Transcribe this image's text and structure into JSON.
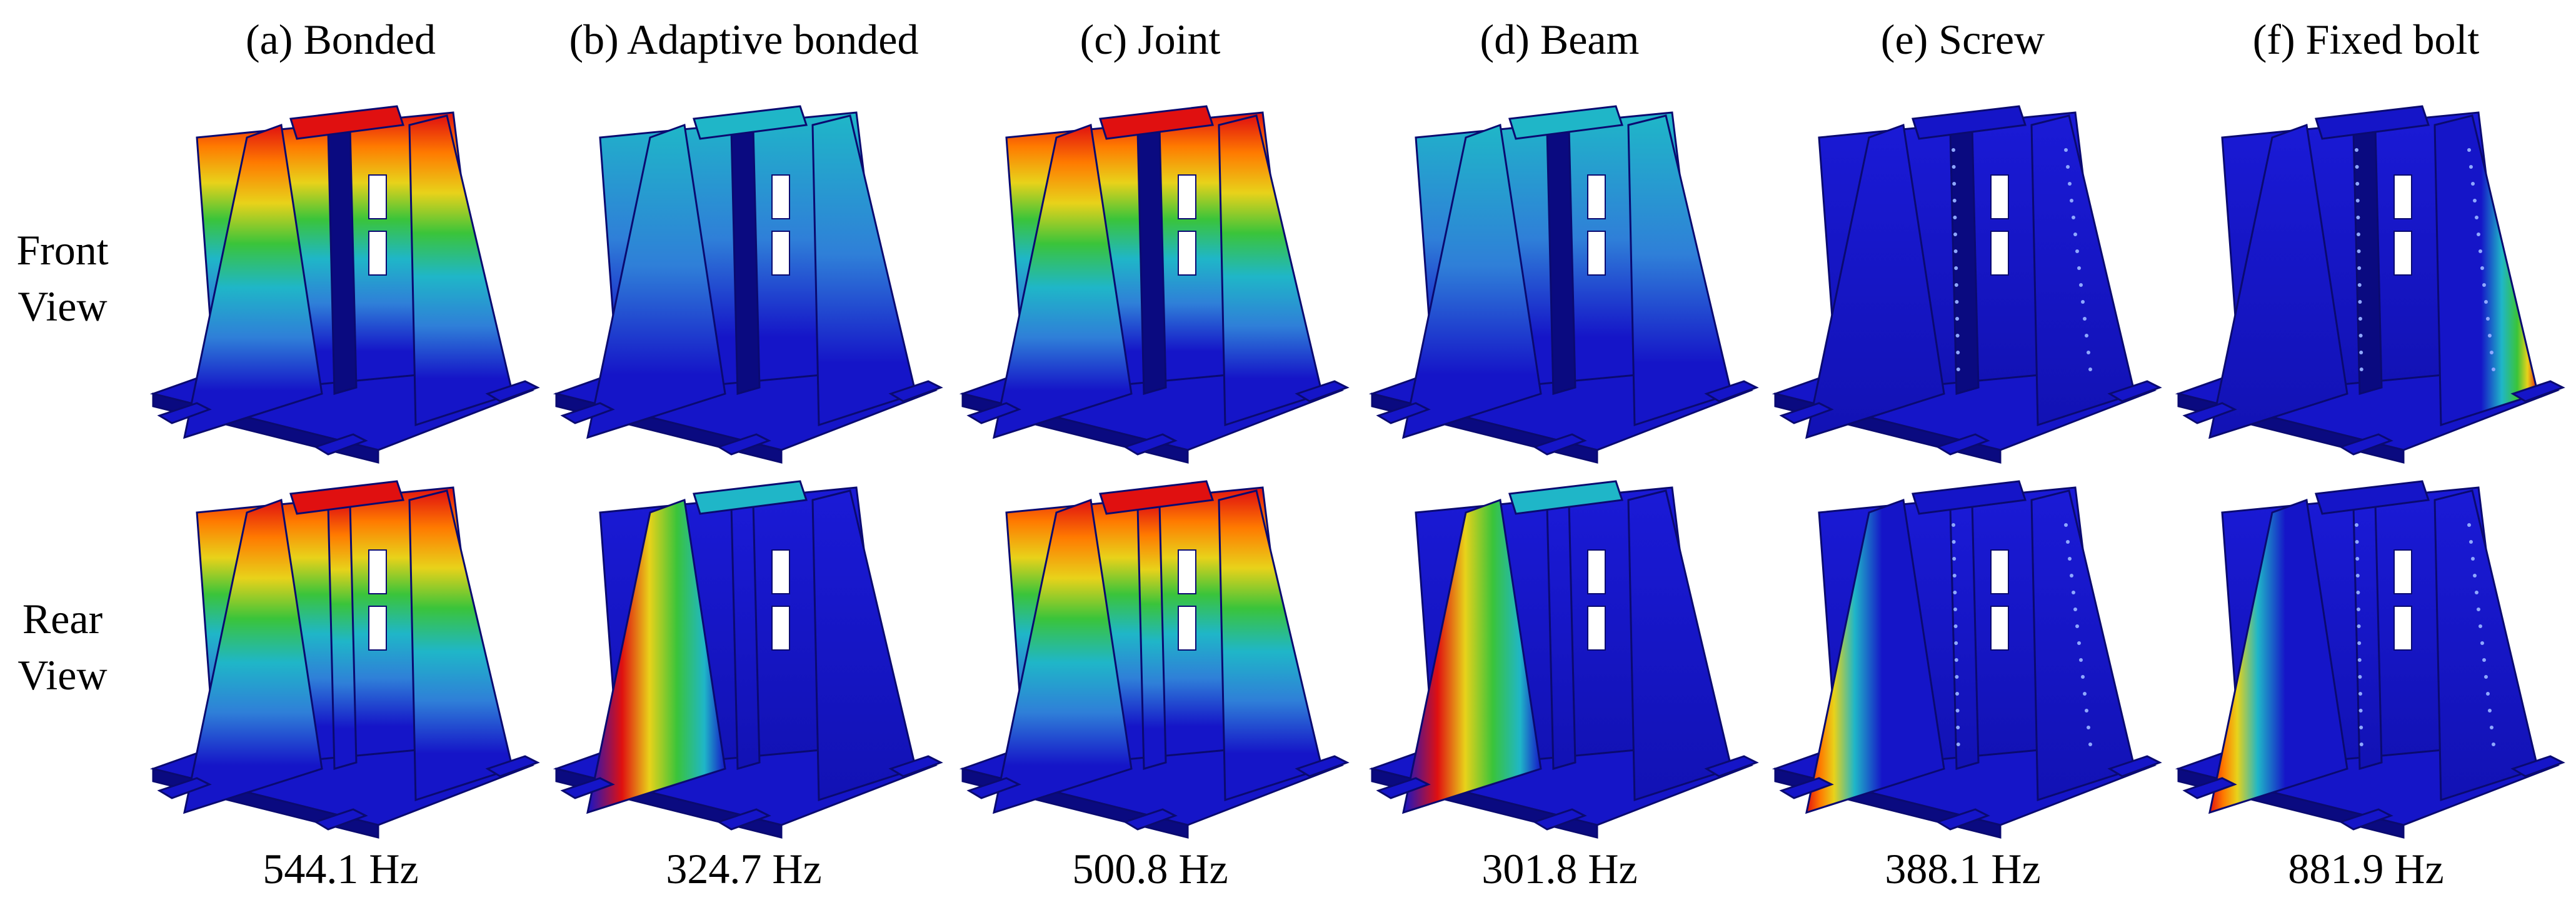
{
  "rows": [
    {
      "label_line1": "Front",
      "label_line2": "View"
    },
    {
      "label_line1": "Rear",
      "label_line2": "View"
    }
  ],
  "columns": [
    {
      "title": "(a) Bonded",
      "frequency": "544.1 Hz",
      "hot_front": "top",
      "hot_rear": "top"
    },
    {
      "title": "(b) Adaptive bonded",
      "frequency": "324.7 Hz",
      "hot_front": "none",
      "hot_rear": "left-edge"
    },
    {
      "title": "(c) Joint",
      "frequency": "500.8 Hz",
      "hot_front": "top",
      "hot_rear": "top"
    },
    {
      "title": "(d) Beam",
      "frequency": "301.8 Hz",
      "hot_front": "none",
      "hot_rear": "left-edge"
    },
    {
      "title": "(e) Screw",
      "frequency": "388.1 Hz",
      "hot_front": "none",
      "hot_rear": "left-plate"
    },
    {
      "title": "(f) Fixed bolt",
      "frequency": "881.9 Hz",
      "hot_front": "right-plate",
      "hot_rear": "left-plate"
    }
  ],
  "colors": {
    "blue": "#1515c8",
    "dark_blue": "#0a0a80",
    "light_blue": "#2f7fd8",
    "cyan": "#1fb6c8",
    "green": "#3ac43a",
    "yellow": "#e8d21a",
    "orange": "#ff7a00",
    "red": "#e01010"
  }
}
